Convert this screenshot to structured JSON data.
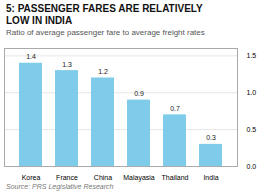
{
  "chart_data": {
    "type": "bar",
    "title": [
      "5: PASSENGER FARES ARE RELATIVELY",
      "LOW IN INDIA"
    ],
    "subtitle": "Ratio of average passenger fare to average freight rates",
    "source": "Source: PRS Legislative Research",
    "categories": [
      "Korea",
      "France",
      "China",
      "Malayasia",
      "Thailand",
      "India"
    ],
    "values": [
      1.4,
      1.3,
      1.2,
      0.9,
      0.7,
      0.3
    ],
    "color": "#7ecbea",
    "ylim": [
      0,
      1.6
    ],
    "yticks": [
      {
        "value": 0.0,
        "label": "0.0"
      },
      0.5,
      {
        "value": 1.0,
        "label": "1.0"
      },
      1.5
    ],
    "grid": true,
    "data_labels": true
  }
}
